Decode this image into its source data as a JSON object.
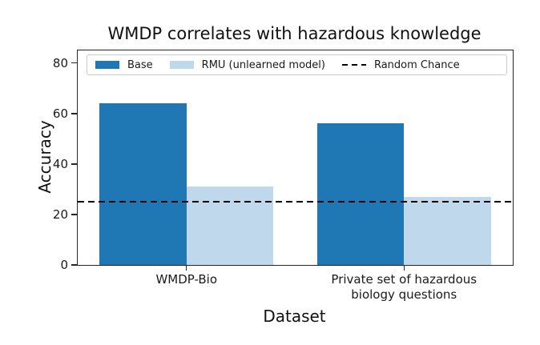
{
  "chart_data": {
    "type": "bar",
    "title": "WMDP correlates with hazardous knowledge",
    "xlabel": "Dataset",
    "ylabel": "Accuracy",
    "categories": [
      "WMDP-Bio",
      "Private set of hazardous\nbiology questions"
    ],
    "series": [
      {
        "name": "Base",
        "color": "#1f77b4",
        "values": [
          64,
          56
        ]
      },
      {
        "name": "RMU (unlearned model)",
        "color": "#c0d8eb",
        "values": [
          31,
          27
        ]
      }
    ],
    "reference_line": {
      "label": "Random Chance",
      "value": 25,
      "color": "#000000",
      "style": "dashed"
    },
    "ylim": [
      0,
      85
    ],
    "yticks": [
      0,
      20,
      40,
      60,
      80
    ],
    "bar_group_width": 0.8,
    "legend_position": "upper center",
    "grid": false
  }
}
